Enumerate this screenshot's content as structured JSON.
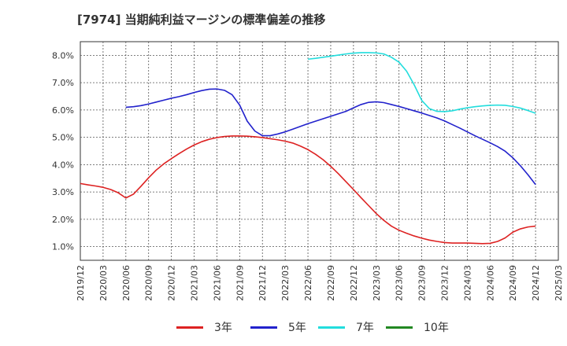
{
  "chart_data": {
    "type": "line",
    "title": "[7974]  当期純利益マージンの標準偏差の推移",
    "xlabel": "",
    "ylabel": "",
    "ylim": [
      0.5,
      8.5
    ],
    "yticks": [
      1.0,
      2.0,
      3.0,
      4.0,
      5.0,
      6.0,
      7.0,
      8.0
    ],
    "ytick_labels": [
      "1.0%",
      "2.0%",
      "3.0%",
      "4.0%",
      "5.0%",
      "6.0%",
      "7.0%",
      "8.0%"
    ],
    "xticks": [
      "2019/12",
      "2020/03",
      "2020/06",
      "2020/09",
      "2020/12",
      "2021/03",
      "2021/06",
      "2021/09",
      "2021/12",
      "2022/03",
      "2022/06",
      "2022/09",
      "2022/12",
      "2023/03",
      "2023/06",
      "2023/09",
      "2023/12",
      "2024/03",
      "2024/06",
      "2024/09",
      "2024/12",
      "2025/03"
    ],
    "grid": true,
    "legend_position": "bottom",
    "series": [
      {
        "name": "3年",
        "color": "#dd2222",
        "x": [
          "2019/12",
          "2020/01",
          "2020/02",
          "2020/03",
          "2020/04",
          "2020/05",
          "2020/06",
          "2020/07",
          "2020/08",
          "2020/09",
          "2020/10",
          "2020/11",
          "2020/12",
          "2021/01",
          "2021/02",
          "2021/03",
          "2021/04",
          "2021/05",
          "2021/06",
          "2021/07",
          "2021/08",
          "2021/09",
          "2021/10",
          "2021/11",
          "2021/12",
          "2022/01",
          "2022/02",
          "2022/03",
          "2022/04",
          "2022/05",
          "2022/06",
          "2022/07",
          "2022/08",
          "2022/09",
          "2022/10",
          "2022/11",
          "2022/12",
          "2023/01",
          "2023/02",
          "2023/03",
          "2023/04",
          "2023/05",
          "2023/06",
          "2023/07",
          "2023/08",
          "2023/09",
          "2023/10",
          "2023/11",
          "2023/12",
          "2024/01",
          "2024/02",
          "2024/03",
          "2024/04",
          "2024/05",
          "2024/06",
          "2024/07",
          "2024/08",
          "2024/09",
          "2024/10",
          "2024/11",
          "2024/12"
        ],
        "values": [
          3.31,
          3.26,
          3.22,
          3.17,
          3.09,
          2.97,
          2.78,
          2.92,
          3.21,
          3.52,
          3.8,
          4.03,
          4.22,
          4.4,
          4.57,
          4.72,
          4.84,
          4.93,
          4.99,
          5.03,
          5.05,
          5.05,
          5.04,
          5.02,
          4.99,
          4.95,
          4.91,
          4.86,
          4.79,
          4.68,
          4.55,
          4.38,
          4.18,
          3.94,
          3.67,
          3.38,
          3.09,
          2.79,
          2.5,
          2.21,
          1.96,
          1.75,
          1.6,
          1.49,
          1.39,
          1.31,
          1.24,
          1.19,
          1.15,
          1.13,
          1.13,
          1.13,
          1.12,
          1.11,
          1.12,
          1.19,
          1.32,
          1.53,
          1.65,
          1.72,
          1.75
        ]
      },
      {
        "name": "5年",
        "color": "#2222cc",
        "x": [
          "2020/06",
          "2020/07",
          "2020/08",
          "2020/09",
          "2020/10",
          "2020/11",
          "2020/12",
          "2021/01",
          "2021/02",
          "2021/03",
          "2021/04",
          "2021/05",
          "2021/06",
          "2021/07",
          "2021/08",
          "2021/09",
          "2021/10",
          "2021/11",
          "2021/12",
          "2022/01",
          "2022/02",
          "2022/03",
          "2022/04",
          "2022/05",
          "2022/06",
          "2022/07",
          "2022/08",
          "2022/09",
          "2022/10",
          "2022/11",
          "2022/12",
          "2023/01",
          "2023/02",
          "2023/03",
          "2023/04",
          "2023/05",
          "2023/06",
          "2023/07",
          "2023/08",
          "2023/09",
          "2023/10",
          "2023/11",
          "2023/12",
          "2024/01",
          "2024/02",
          "2024/03",
          "2024/04",
          "2024/05",
          "2024/06",
          "2024/07",
          "2024/08",
          "2024/09",
          "2024/10",
          "2024/11",
          "2024/12"
        ],
        "values": [
          6.1,
          6.12,
          6.16,
          6.22,
          6.29,
          6.36,
          6.43,
          6.49,
          6.56,
          6.64,
          6.71,
          6.76,
          6.77,
          6.72,
          6.56,
          6.18,
          5.59,
          5.23,
          5.06,
          5.06,
          5.12,
          5.2,
          5.3,
          5.4,
          5.5,
          5.59,
          5.68,
          5.77,
          5.86,
          5.95,
          6.08,
          6.2,
          6.28,
          6.3,
          6.27,
          6.2,
          6.13,
          6.05,
          5.97,
          5.89,
          5.8,
          5.71,
          5.6,
          5.47,
          5.34,
          5.2,
          5.06,
          4.93,
          4.8,
          4.66,
          4.49,
          4.25,
          3.96,
          3.63,
          3.27
        ]
      },
      {
        "name": "7年",
        "color": "#22dddd",
        "x": [
          "2022/06",
          "2022/07",
          "2022/08",
          "2022/09",
          "2022/10",
          "2022/11",
          "2022/12",
          "2023/01",
          "2023/02",
          "2023/03",
          "2023/04",
          "2023/05",
          "2023/06",
          "2023/07",
          "2023/08",
          "2023/09",
          "2023/10",
          "2023/11",
          "2023/12",
          "2024/01",
          "2024/02",
          "2024/03",
          "2024/04",
          "2024/05",
          "2024/06",
          "2024/07",
          "2024/08",
          "2024/09",
          "2024/10",
          "2024/11",
          "2024/12"
        ],
        "values": [
          7.86,
          7.89,
          7.93,
          7.97,
          8.01,
          8.05,
          8.08,
          8.1,
          8.1,
          8.09,
          8.05,
          7.93,
          7.75,
          7.42,
          6.92,
          6.35,
          6.05,
          5.95,
          5.94,
          5.97,
          6.03,
          6.08,
          6.12,
          6.15,
          6.17,
          6.18,
          6.17,
          6.13,
          6.07,
          5.98,
          5.88
        ]
      },
      {
        "name": "10年",
        "color": "#228822",
        "x": [],
        "values": []
      }
    ]
  }
}
